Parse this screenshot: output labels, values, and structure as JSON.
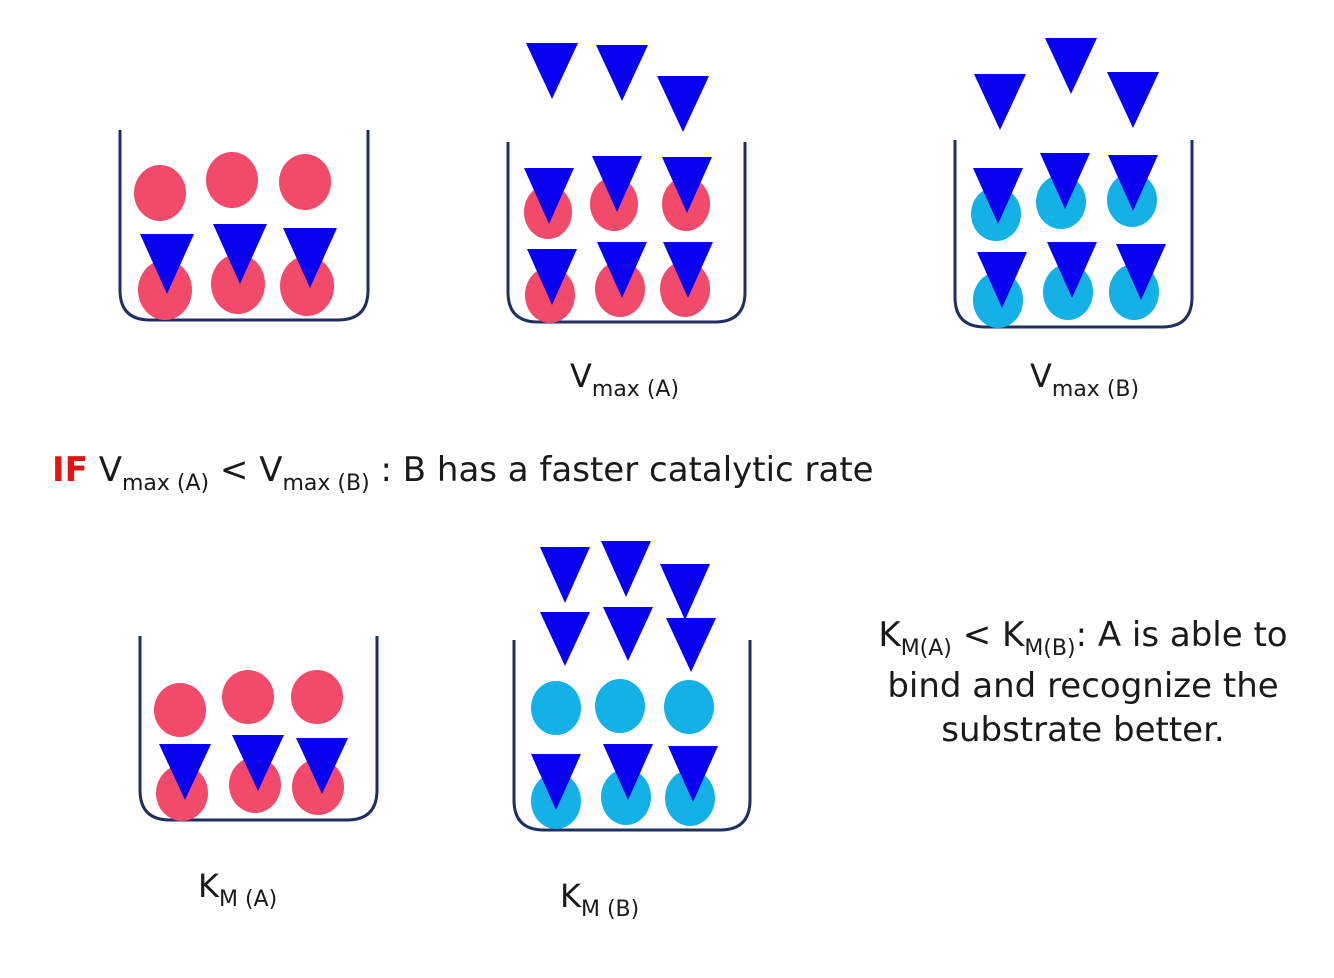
{
  "colors": {
    "beaker": "#1f2f63",
    "enzyme_a": "#f14a6a",
    "enzyme_b": "#13b1e6",
    "substrate": "#0a00f0",
    "if_color": "#e01616"
  },
  "labels": {
    "vmax_a": {
      "main": "V",
      "sub": "max (A)"
    },
    "vmax_b": {
      "main": "V",
      "sub": "max (B)"
    },
    "km_a": {
      "main": "K",
      "sub": "M (A)"
    },
    "km_b": {
      "main": "K",
      "sub": "M (B)"
    }
  },
  "comparison": {
    "if_word": "IF",
    "left_main": "V",
    "left_sub": "max (A)",
    "operator": "<",
    "right_main": "V",
    "right_sub": "max (B)",
    "text": ": B has a faster catalytic rate"
  },
  "km_note": {
    "left_main": "K",
    "left_sub": "M(A)",
    "operator": "<",
    "right_main": "K",
    "right_sub": "M(B)",
    "text_1": ": A is able to",
    "text_2": "bind and recognize the",
    "text_3": "substrate better."
  }
}
